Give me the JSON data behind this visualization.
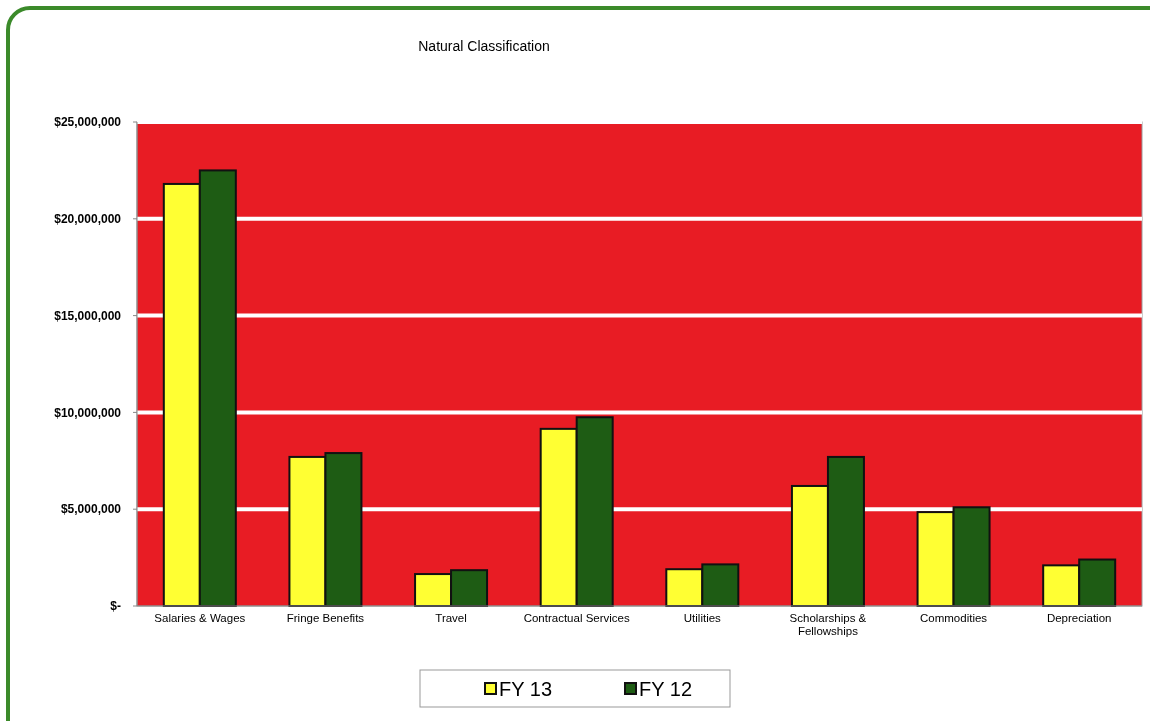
{
  "chart_data": {
    "type": "bar",
    "title": "Natural Classification",
    "categories": [
      "Salaries & Wages",
      "Fringe Benefits",
      "Travel",
      "Contractual Services",
      "Utilities",
      "Scholarships & Fellowships",
      "Commodities",
      "Depreciation"
    ],
    "series": [
      {
        "name": "FY 13",
        "color": "#ffff33",
        "values": [
          21800000,
          7700000,
          1650000,
          9150000,
          1900000,
          6200000,
          4850000,
          2100000
        ]
      },
      {
        "name": "FY 12",
        "color": "#1e5c14",
        "values": [
          22500000,
          7900000,
          1850000,
          9750000,
          2150000,
          7700000,
          5100000,
          2400000
        ]
      }
    ],
    "ylim": [
      0,
      25000000
    ],
    "yticks": [
      {
        "value": 0,
        "label": "$-"
      },
      {
        "value": 5000000,
        "label": "$5,000,000"
      },
      {
        "value": 10000000,
        "label": "$10,000,000"
      },
      {
        "value": 15000000,
        "label": "$15,000,000"
      },
      {
        "value": 20000000,
        "label": "$20,000,000"
      },
      {
        "value": 25000000,
        "label": "$25,000,000"
      }
    ],
    "grid": "y",
    "legend": "bottom"
  }
}
